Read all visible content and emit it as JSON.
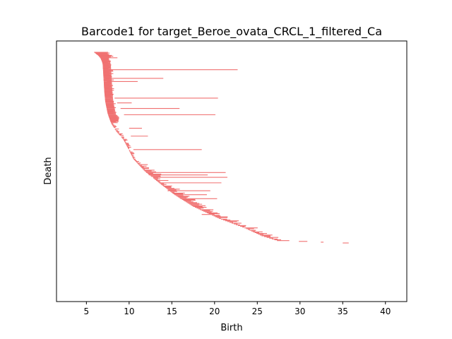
{
  "chart_data": {
    "type": "barcode",
    "title": "Barcode1 for target_Beroe_ovata_CRCL_1_filtered_Ca",
    "xlabel": "Birth",
    "ylabel": "Death",
    "xlim": [
      1.5,
      42.5
    ],
    "xticks": [
      5,
      10,
      15,
      20,
      25,
      30,
      35,
      40
    ],
    "x_tick_labels": [
      "5",
      "10",
      "15",
      "20",
      "25",
      "30",
      "35",
      "40"
    ],
    "y_ticks_shown": false,
    "bar_color": "#f07070",
    "n_bars": 300,
    "frontier": [
      {
        "rank": 0,
        "birth": 5.9
      },
      {
        "rank": 6,
        "birth": 6.6
      },
      {
        "rank": 14,
        "birth": 6.9
      },
      {
        "rank": 50,
        "birth": 7.1
      },
      {
        "rank": 62,
        "birth": 7.2
      },
      {
        "rank": 78,
        "birth": 7.5
      },
      {
        "rank": 90,
        "birth": 7.9
      },
      {
        "rank": 100,
        "birth": 8.5
      },
      {
        "rank": 110,
        "birth": 9.3
      },
      {
        "rank": 120,
        "birth": 9.8
      },
      {
        "rank": 135,
        "birth": 10.5
      },
      {
        "rank": 150,
        "birth": 11.8
      },
      {
        "rank": 165,
        "birth": 13.5
      },
      {
        "rank": 180,
        "birth": 15.3
      },
      {
        "rank": 195,
        "birth": 17.5
      },
      {
        "rank": 210,
        "birth": 20.5
      },
      {
        "rank": 222,
        "birth": 23.5
      },
      {
        "rank": 232,
        "birth": 25.5
      },
      {
        "rank": 238,
        "birth": 27.3
      },
      {
        "rank": 241,
        "birth": 35.0
      }
    ],
    "highlighted_bars": [
      {
        "rank": 22,
        "birth": 7.0,
        "death": 22.7
      },
      {
        "rank": 33,
        "birth": 7.2,
        "death": 14.0
      },
      {
        "rank": 37,
        "birth": 7.4,
        "death": 11.0
      },
      {
        "rank": 58,
        "birth": 8.3,
        "death": 20.4
      },
      {
        "rank": 64,
        "birth": 8.6,
        "death": 10.3
      },
      {
        "rank": 71,
        "birth": 9.0,
        "death": 15.9
      },
      {
        "rank": 79,
        "birth": 9.4,
        "death": 20.1
      },
      {
        "rank": 96,
        "birth": 10.0,
        "death": 11.5
      },
      {
        "rank": 106,
        "birth": 10.2,
        "death": 12.2
      },
      {
        "rank": 123,
        "birth": 10.5,
        "death": 18.5
      },
      {
        "rank": 152,
        "birth": 12.0,
        "death": 21.3
      },
      {
        "rank": 155,
        "birth": 12.3,
        "death": 19.2
      },
      {
        "rank": 158,
        "birth": 12.8,
        "death": 21.5
      },
      {
        "rank": 165,
        "birth": 13.5,
        "death": 20.8
      },
      {
        "rank": 175,
        "birth": 14.5,
        "death": 19.5
      },
      {
        "rank": 180,
        "birth": 15.3,
        "death": 19.1
      },
      {
        "rank": 185,
        "birth": 16.0,
        "death": 20.3
      },
      {
        "rank": 205,
        "birth": 18.5,
        "death": 20.0
      }
    ]
  }
}
